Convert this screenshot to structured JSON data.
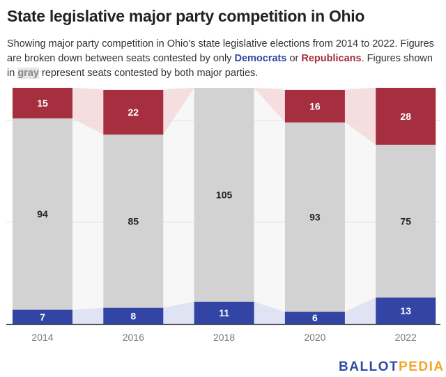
{
  "header": {
    "title": "State legislative major party competition in Ohio",
    "subtitle_parts": [
      {
        "text": "Showing major party competition in Ohio's state legislative elections from 2014 to 2022. Figures are broken down between seats contested by only ",
        "style": "plain"
      },
      {
        "text": "Democrats",
        "style": "dem"
      },
      {
        "text": " or ",
        "style": "plain"
      },
      {
        "text": "Republicans",
        "style": "rep"
      },
      {
        "text": ". Figures shown in ",
        "style": "plain"
      },
      {
        "text": "gray",
        "style": "gray"
      },
      {
        "text": " represent seats contested by both major parties.",
        "style": "plain"
      }
    ]
  },
  "logo": {
    "part1": "BALLOT",
    "part2": "PEDIA"
  },
  "colors": {
    "democrat": "#3245a4",
    "republican": "#a52f3e",
    "both": "#d2d2d2",
    "democrat_band": "#e0e3f3",
    "republican_band": "#f5dde0",
    "gap": "#f7f7f7",
    "grid": "#e2e2e2",
    "axis": "#333333"
  },
  "chart_data": {
    "type": "bar",
    "stacked": true,
    "title": "State legislative major party competition in Ohio",
    "xlabel": "",
    "ylabel": "",
    "categories": [
      "2014",
      "2016",
      "2018",
      "2020",
      "2022"
    ],
    "series": [
      {
        "name": "Contested by only Democrats",
        "values": [
          7,
          8,
          11,
          6,
          13
        ]
      },
      {
        "name": "Contested by both major parties",
        "values": [
          94,
          85,
          105,
          93,
          75
        ]
      },
      {
        "name": "Contested by only Republicans",
        "values": [
          15,
          22,
          0,
          16,
          28
        ]
      }
    ],
    "ylim": [
      0,
      116
    ],
    "gridlines": [
      50,
      100
    ],
    "grid": true,
    "legend": "none (described in subtitle)"
  }
}
